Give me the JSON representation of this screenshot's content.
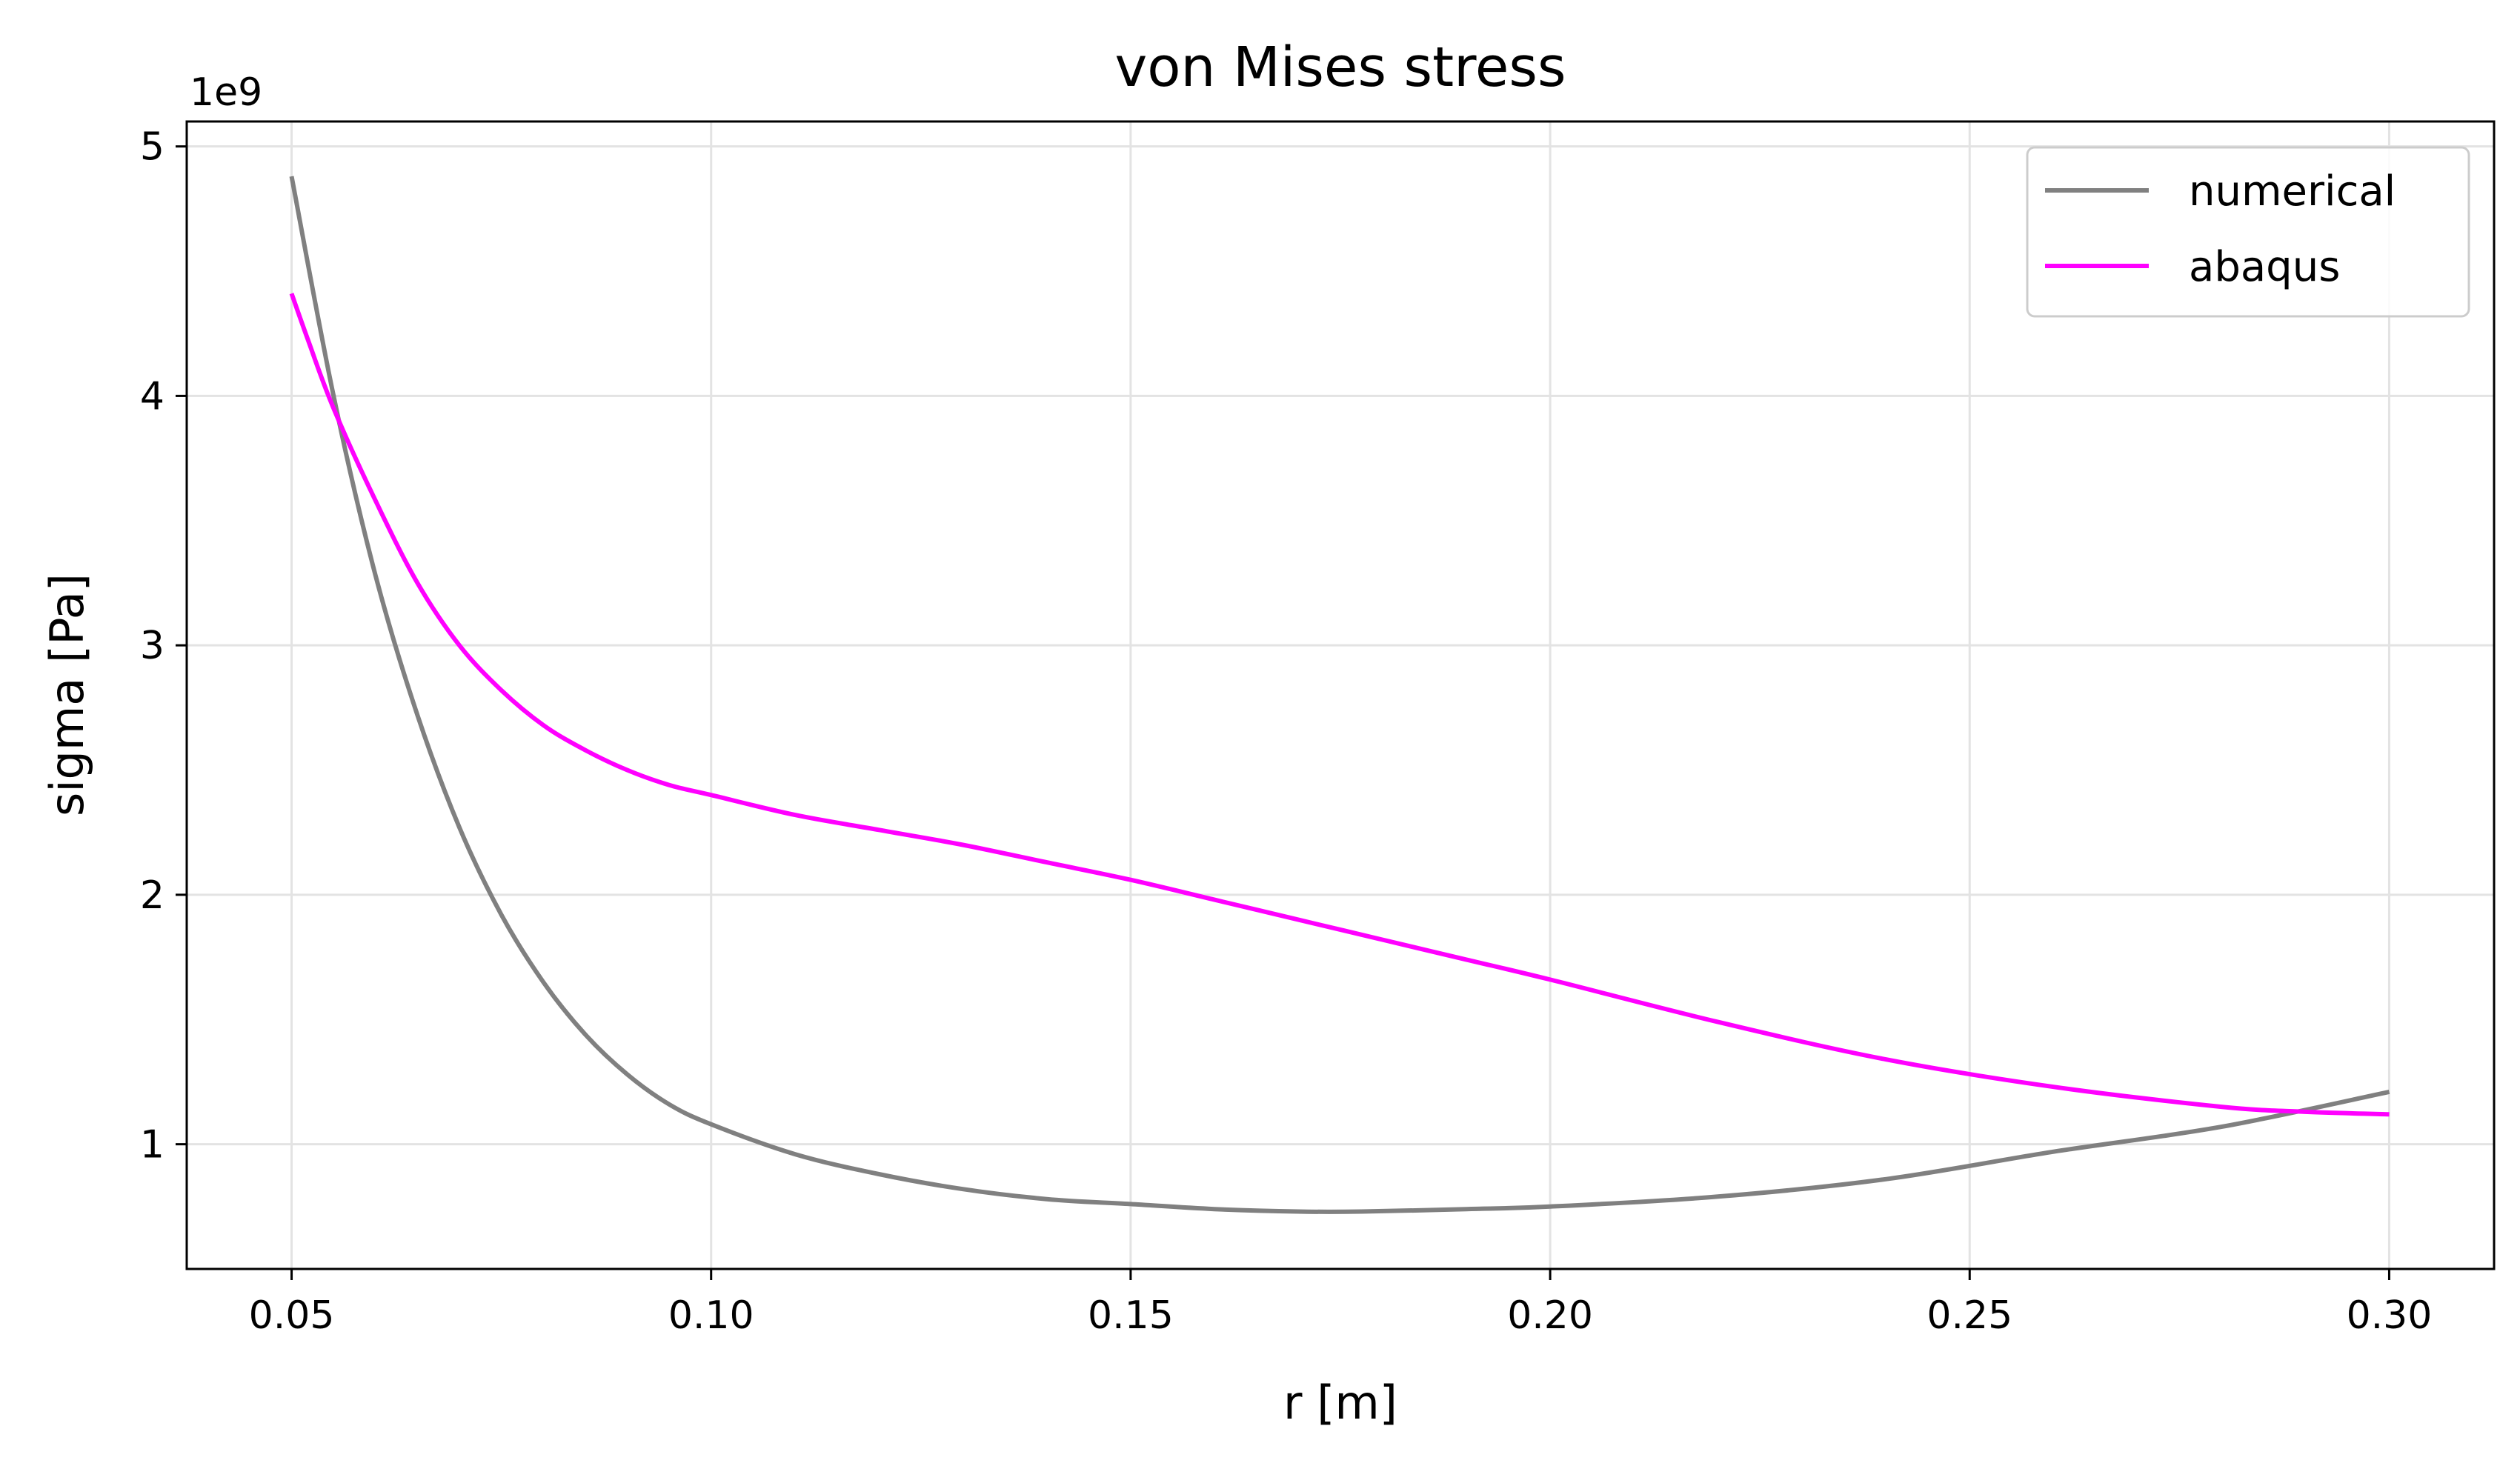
{
  "chart_data": {
    "type": "line",
    "title": "von Mises stress",
    "xlabel": "r [m]",
    "ylabel": "sigma [Pa]",
    "y_offset_label": "1e9",
    "xlim": [
      0.0375,
      0.3125
    ],
    "ylim": [
      0.5,
      5.1
    ],
    "x_ticks": [
      0.05,
      0.1,
      0.15,
      0.2,
      0.25,
      0.3
    ],
    "x_tick_labels": [
      "0.05",
      "0.10",
      "0.15",
      "0.20",
      "0.25",
      "0.30"
    ],
    "y_ticks": [
      1,
      2,
      3,
      4,
      5
    ],
    "y_tick_labels": [
      "1",
      "2",
      "3",
      "4",
      "5"
    ],
    "grid": true,
    "legend_position": "top-right",
    "series": [
      {
        "name": "numerical",
        "color": "#808080",
        "x": [
          0.05,
          0.055,
          0.06,
          0.065,
          0.07,
          0.075,
          0.08,
          0.085,
          0.09,
          0.095,
          0.1,
          0.11,
          0.12,
          0.13,
          0.14,
          0.15,
          0.16,
          0.17,
          0.1775,
          0.19,
          0.2,
          0.22,
          0.24,
          0.26,
          0.28,
          0.3
        ],
        "y": [
          4.88,
          4.0,
          3.28,
          2.72,
          2.27,
          1.92,
          1.65,
          1.44,
          1.28,
          1.16,
          1.08,
          0.96,
          0.88,
          0.82,
          0.78,
          0.76,
          0.74,
          0.73,
          0.73,
          0.74,
          0.75,
          0.79,
          0.86,
          0.97,
          1.07,
          1.21
        ]
      },
      {
        "name": "abaqus",
        "color": "#ff00ff",
        "x": [
          0.05,
          0.052,
          0.055,
          0.06,
          0.065,
          0.07,
          0.075,
          0.08,
          0.085,
          0.09,
          0.095,
          0.1,
          0.11,
          0.12,
          0.13,
          0.14,
          0.15,
          0.16,
          0.17,
          0.18,
          0.19,
          0.2,
          0.22,
          0.24,
          0.26,
          0.28,
          0.29,
          0.3
        ],
        "y": [
          4.41,
          4.22,
          3.95,
          3.58,
          3.25,
          3.0,
          2.82,
          2.68,
          2.58,
          2.5,
          2.44,
          2.4,
          2.32,
          2.26,
          2.2,
          2.13,
          2.06,
          1.98,
          1.9,
          1.82,
          1.74,
          1.66,
          1.49,
          1.34,
          1.23,
          1.15,
          1.13,
          1.12
        ]
      }
    ]
  }
}
